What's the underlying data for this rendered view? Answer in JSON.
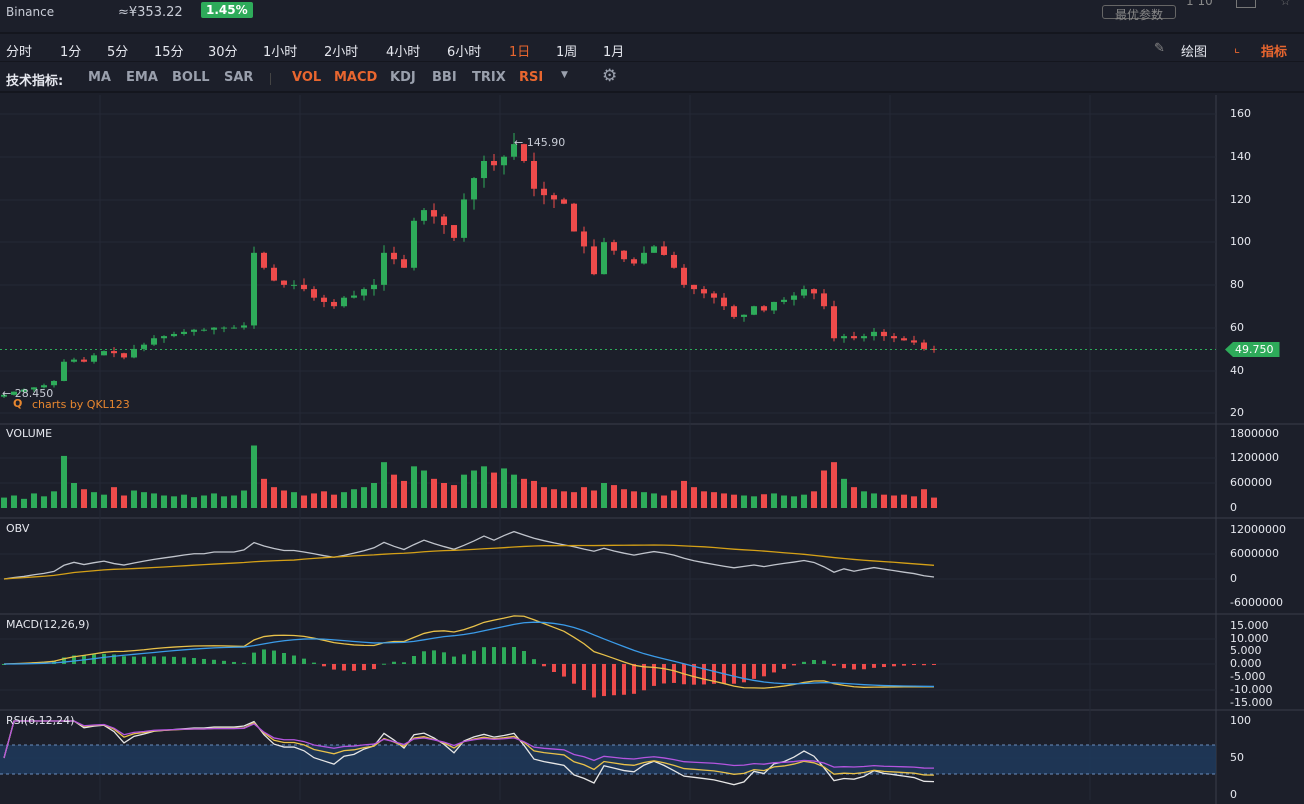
{
  "header": {
    "exchange": "Binance",
    "price_cny": "≈¥353.22",
    "change": "1.45%",
    "optimal_params": "最优参数",
    "ratio": "1 10"
  },
  "intervals": [
    {
      "label": "分时"
    },
    {
      "label": "1分"
    },
    {
      "label": "5分"
    },
    {
      "label": "15分"
    },
    {
      "label": "30分"
    },
    {
      "label": "1小时"
    },
    {
      "label": "2小时"
    },
    {
      "label": "4小时"
    },
    {
      "label": "6小时"
    },
    {
      "label": "1日",
      "active": true
    },
    {
      "label": "1周"
    },
    {
      "label": "1月"
    }
  ],
  "tools": {
    "draw": "绘图",
    "indicators": "指标"
  },
  "indicator_bar": {
    "title": "技术指标:",
    "items": [
      {
        "label": "MA"
      },
      {
        "label": "EMA"
      },
      {
        "label": "BOLL"
      },
      {
        "label": "SAR"
      },
      {
        "label": "VOL",
        "active": true
      },
      {
        "label": "MACD",
        "active": true
      },
      {
        "label": "KDJ"
      },
      {
        "label": "BBI"
      },
      {
        "label": "TRIX"
      },
      {
        "label": "RSI",
        "active": true
      }
    ]
  },
  "colors": {
    "up": "#2eab5a",
    "down": "#ee4b4b",
    "bg": "#1c1f2a",
    "accent": "#e8662f"
  },
  "chart_data": {
    "type": "candlestick",
    "high_label": "145.90",
    "low_label": "28.450",
    "last_price": "49.750",
    "watermark": "charts by QKL123",
    "price_axis": [
      "160",
      "140",
      "120",
      "100",
      "80",
      "60",
      "40",
      "20"
    ],
    "price_range": [
      20,
      160
    ],
    "closes": [
      28.5,
      30,
      31,
      32,
      33,
      35,
      44,
      45,
      44,
      47,
      49,
      48,
      46,
      50,
      52,
      55,
      56,
      57,
      58,
      59,
      59,
      60,
      60,
      60,
      61,
      95,
      88,
      82,
      80,
      80,
      78,
      74,
      72,
      70,
      74,
      75,
      78,
      80,
      95,
      92,
      88,
      110,
      115,
      112,
      108,
      102,
      120,
      130,
      138,
      136,
      140,
      145.9,
      138,
      125,
      122,
      120,
      118,
      105,
      98,
      85,
      100,
      96,
      92,
      90,
      95,
      98,
      94,
      88,
      80,
      78,
      76,
      74,
      70,
      65,
      66,
      70,
      68,
      72,
      73,
      75,
      78,
      76,
      70,
      55,
      56,
      55,
      56,
      58,
      56,
      55,
      54,
      53,
      50,
      49.75
    ],
    "volumes": [
      250,
      300,
      220,
      350,
      280,
      400,
      1250,
      600,
      450,
      380,
      320,
      500,
      300,
      420,
      380,
      350,
      300,
      280,
      320,
      260,
      300,
      350,
      280,
      300,
      420,
      1500,
      700,
      500,
      420,
      380,
      300,
      350,
      400,
      320,
      380,
      450,
      500,
      600,
      1100,
      800,
      650,
      1000,
      900,
      700,
      600,
      550,
      800,
      900,
      1000,
      850,
      950,
      800,
      700,
      650,
      500,
      450,
      400,
      380,
      500,
      420,
      600,
      550,
      450,
      400,
      380,
      350,
      300,
      420,
      650,
      500,
      400,
      380,
      350,
      320,
      300,
      280,
      330,
      350,
      300,
      280,
      320,
      400,
      900,
      1100,
      700,
      500,
      400,
      350,
      320,
      300,
      320,
      280,
      450,
      250
    ],
    "volume": {
      "title": "VOLUME",
      "axis": [
        "1800000",
        "1200000",
        "600000",
        "0"
      ]
    },
    "obv": {
      "title": "OBV",
      "axis": [
        "12000000",
        "6000000",
        "0",
        "-6000000"
      ]
    },
    "macd": {
      "title": "MACD(12,26,9)",
      "axis": [
        "15.000",
        "10.000",
        "5.000",
        "0.000",
        "-5.000",
        "-10.000",
        "-15.000"
      ]
    },
    "rsi": {
      "title": "RSI(6,12,24)",
      "axis": [
        "100",
        "50",
        "0"
      ]
    }
  }
}
